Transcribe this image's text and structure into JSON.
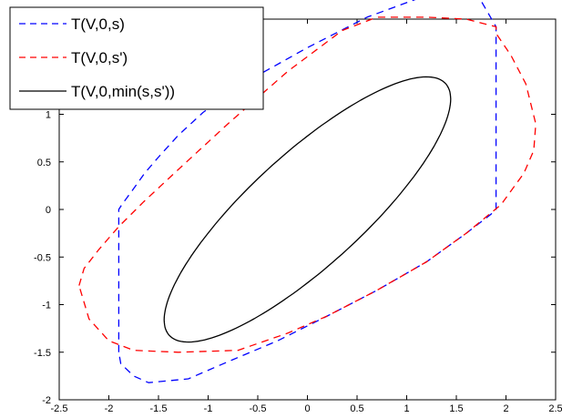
{
  "chart_data": {
    "type": "line",
    "xlim": [
      -2.5,
      2.5
    ],
    "ylim": [
      -2,
      2
    ],
    "xticks": [
      -2.5,
      -2,
      -1.5,
      -1,
      -0.5,
      0,
      0.5,
      1,
      1.5,
      2,
      2.5
    ],
    "yticks": [
      -2,
      -1.5,
      -1,
      -0.5,
      0,
      0.5,
      1
    ],
    "xtick_labels": [
      "-2.5",
      "-2",
      "-1.5",
      "-1",
      "-0.5",
      "0",
      "0.5",
      "1",
      "1.5",
      "2",
      "2.5"
    ],
    "ytick_labels": [
      "-2",
      "-1.5",
      "-1",
      "-0.5",
      "0",
      "0.5",
      "1"
    ],
    "grid": false,
    "legend_position": "top-left",
    "series": [
      {
        "name": "T(V,0,s)",
        "color": "#0000ff",
        "style": "dashed",
        "x": [
          -1.9,
          -1.9,
          -1.87,
          -1.82,
          -1.75,
          -1.64,
          -1.5,
          -1.3,
          -1.05,
          -0.6,
          0.0,
          0.6,
          1.2,
          1.5,
          1.7,
          1.9,
          1.9,
          1.85,
          1.6,
          1.2,
          0.7,
          0.2,
          -0.3,
          -0.8,
          -1.2,
          -1.6,
          -1.75,
          -1.88,
          -1.9
        ],
        "y": [
          -1.5,
          0.0,
          0.05,
          0.12,
          0.22,
          0.38,
          0.55,
          0.78,
          1.02,
          1.35,
          1.7,
          2.02,
          2.25,
          2.3,
          2.28,
          1.92,
          0.0,
          -0.05,
          -0.25,
          -0.55,
          -0.85,
          -1.12,
          -1.38,
          -1.6,
          -1.78,
          -1.82,
          -1.75,
          -1.62,
          -1.5
        ]
      },
      {
        "name": "T(V,0,s')",
        "color": "#ff0000",
        "style": "dashed",
        "x": [
          -2.3,
          -2.25,
          -2.1,
          -1.9,
          -1.65,
          -1.3,
          -0.8,
          -0.2,
          0.35,
          0.7,
          1.2,
          1.6,
          1.9,
          1.9,
          2.05,
          2.2,
          2.3,
          2.28,
          2.18,
          1.95,
          1.6,
          1.2,
          0.7,
          0.2,
          -0.2,
          -0.7,
          -1.3,
          -1.75,
          -2.0,
          -2.2,
          -2.3
        ],
        "y": [
          -0.8,
          -0.62,
          -0.42,
          -0.18,
          0.08,
          0.42,
          0.9,
          1.45,
          1.88,
          2.02,
          2.02,
          2.0,
          1.92,
          1.85,
          1.62,
          1.32,
          0.9,
          0.62,
          0.38,
          0.05,
          -0.25,
          -0.55,
          -0.85,
          -1.12,
          -1.3,
          -1.48,
          -1.5,
          -1.48,
          -1.38,
          -1.15,
          -0.8
        ]
      },
      {
        "name": "T(V,0,min(s,s'))",
        "color": "#000000",
        "style": "solid",
        "ellipse": {
          "cx": 0.0,
          "cy": 0.0,
          "a": 1.92,
          "b": 0.58,
          "angle_deg": 43.8
        }
      }
    ]
  }
}
